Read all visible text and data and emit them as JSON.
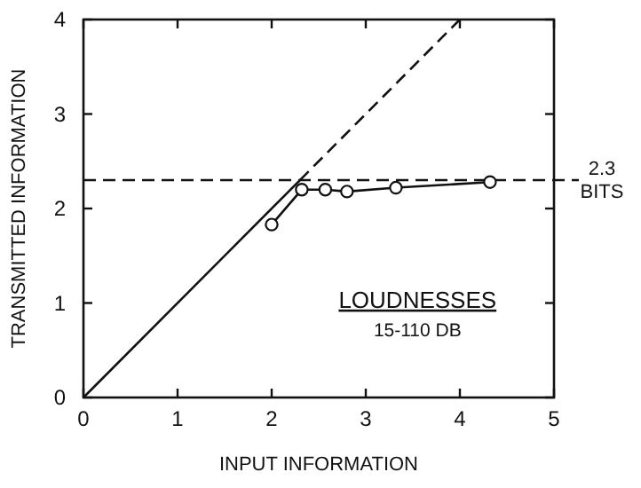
{
  "chart_data": {
    "type": "line",
    "xlabel": "INPUT INFORMATION",
    "ylabel": "TRANSMITTED INFORMATION",
    "xlim": [
      0,
      5
    ],
    "ylim": [
      0,
      4
    ],
    "xticks": [
      0,
      1,
      2,
      3,
      4,
      5
    ],
    "yticks": [
      0,
      1,
      2,
      3,
      4
    ],
    "grid": false,
    "series": [
      {
        "color": "#111111",
        "x": [
          0,
          2.3
        ],
        "values": [
          0,
          2.3
        ],
        "line_style": "solid",
        "marker": "none"
      },
      {
        "color": "#111111",
        "x": [
          2.3,
          4
        ],
        "values": [
          2.3,
          4
        ],
        "line_style": "dashed",
        "marker": "none"
      },
      {
        "color": "#111111",
        "x": [
          2.0,
          2.32,
          2.57,
          2.8,
          3.32,
          4.32
        ],
        "values": [
          1.83,
          2.2,
          2.2,
          2.18,
          2.22,
          2.28
        ],
        "line_style": "solid",
        "marker": "circle"
      }
    ],
    "ref_lines": [
      {
        "axis": "y",
        "value": 2.3,
        "label": "2.3 BITS",
        "line_style": "dashed",
        "color": "#111111"
      }
    ],
    "annotations": [
      "LOUDNESSES",
      "15-110 DB"
    ]
  }
}
